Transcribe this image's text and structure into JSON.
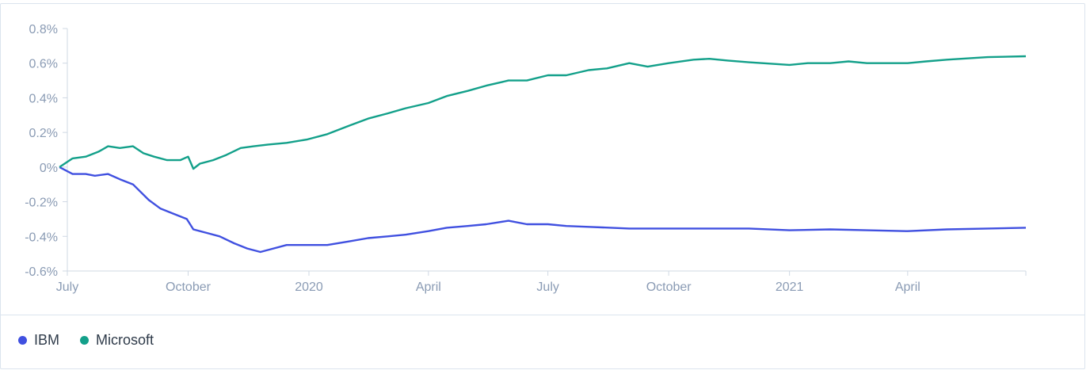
{
  "colors": {
    "ibm": "#4050e0",
    "microsoft": "#13a08a",
    "axis": "#cfd8e3",
    "tick_text": "#8a9bb4"
  },
  "chart_data": {
    "type": "line",
    "title": "",
    "xlabel": "",
    "ylabel": "",
    "ylim": [
      -0.6,
      0.8
    ],
    "xlim": [
      "2019-07-01",
      "2021-06-30"
    ],
    "y_ticks": [
      "0.8%",
      "0.6%",
      "0.4%",
      "0.2%",
      "0%",
      "-0.2%",
      "-0.4%",
      "-0.6%"
    ],
    "x_ticks": [
      {
        "date": "2019-07-01",
        "label": "July"
      },
      {
        "date": "2019-10-01",
        "label": "October"
      },
      {
        "date": "2020-01-01",
        "label": "2020"
      },
      {
        "date": "2020-04-01",
        "label": "April"
      },
      {
        "date": "2020-07-01",
        "label": "July"
      },
      {
        "date": "2020-10-01",
        "label": "October"
      },
      {
        "date": "2021-01-01",
        "label": "2021"
      },
      {
        "date": "2021-04-01",
        "label": "April"
      }
    ],
    "legend_position": "bottom-left",
    "grid": false,
    "series": [
      {
        "name": "IBM",
        "color": "#4050e0",
        "points": [
          [
            "2019-06-25",
            0.0
          ],
          [
            "2019-07-05",
            -0.04
          ],
          [
            "2019-07-15",
            -0.04
          ],
          [
            "2019-07-22",
            -0.05
          ],
          [
            "2019-08-01",
            -0.04
          ],
          [
            "2019-08-10",
            -0.07
          ],
          [
            "2019-08-20",
            -0.1
          ],
          [
            "2019-09-01",
            -0.19
          ],
          [
            "2019-09-10",
            -0.24
          ],
          [
            "2019-09-20",
            -0.27
          ],
          [
            "2019-09-30",
            -0.3
          ],
          [
            "2019-10-05",
            -0.36
          ],
          [
            "2019-10-15",
            -0.38
          ],
          [
            "2019-10-25",
            -0.4
          ],
          [
            "2019-11-05",
            -0.44
          ],
          [
            "2019-11-15",
            -0.47
          ],
          [
            "2019-11-25",
            -0.49
          ],
          [
            "2019-12-05",
            -0.47
          ],
          [
            "2019-12-15",
            -0.45
          ],
          [
            "2019-12-31",
            -0.45
          ],
          [
            "2020-01-15",
            -0.45
          ],
          [
            "2020-01-31",
            -0.43
          ],
          [
            "2020-02-15",
            -0.41
          ],
          [
            "2020-03-01",
            -0.4
          ],
          [
            "2020-03-15",
            -0.39
          ],
          [
            "2020-04-01",
            -0.37
          ],
          [
            "2020-04-15",
            -0.35
          ],
          [
            "2020-05-01",
            -0.34
          ],
          [
            "2020-05-15",
            -0.33
          ],
          [
            "2020-06-01",
            -0.31
          ],
          [
            "2020-06-15",
            -0.33
          ],
          [
            "2020-07-01",
            -0.33
          ],
          [
            "2020-07-15",
            -0.34
          ],
          [
            "2020-08-01",
            -0.345
          ],
          [
            "2020-09-01",
            -0.355
          ],
          [
            "2020-10-01",
            -0.355
          ],
          [
            "2020-11-01",
            -0.355
          ],
          [
            "2020-12-01",
            -0.355
          ],
          [
            "2021-01-01",
            -0.365
          ],
          [
            "2021-02-01",
            -0.36
          ],
          [
            "2021-03-01",
            -0.365
          ],
          [
            "2021-04-01",
            -0.37
          ],
          [
            "2021-05-01",
            -0.36
          ],
          [
            "2021-06-01",
            -0.355
          ],
          [
            "2021-06-30",
            -0.35
          ]
        ]
      },
      {
        "name": "Microsoft",
        "color": "#13a08a",
        "points": [
          [
            "2019-06-25",
            0.0
          ],
          [
            "2019-07-05",
            0.05
          ],
          [
            "2019-07-15",
            0.06
          ],
          [
            "2019-07-25",
            0.09
          ],
          [
            "2019-08-01",
            0.12
          ],
          [
            "2019-08-10",
            0.11
          ],
          [
            "2019-08-20",
            0.12
          ],
          [
            "2019-08-28",
            0.08
          ],
          [
            "2019-09-05",
            0.06
          ],
          [
            "2019-09-15",
            0.04
          ],
          [
            "2019-09-25",
            0.04
          ],
          [
            "2019-10-01",
            0.06
          ],
          [
            "2019-10-05",
            -0.01
          ],
          [
            "2019-10-10",
            0.02
          ],
          [
            "2019-10-20",
            0.04
          ],
          [
            "2019-10-30",
            0.07
          ],
          [
            "2019-11-10",
            0.11
          ],
          [
            "2019-11-20",
            0.12
          ],
          [
            "2019-12-01",
            0.13
          ],
          [
            "2019-12-15",
            0.14
          ],
          [
            "2019-12-31",
            0.16
          ],
          [
            "2020-01-15",
            0.19
          ],
          [
            "2020-02-01",
            0.24
          ],
          [
            "2020-02-15",
            0.28
          ],
          [
            "2020-03-01",
            0.31
          ],
          [
            "2020-03-15",
            0.34
          ],
          [
            "2020-04-01",
            0.37
          ],
          [
            "2020-04-15",
            0.41
          ],
          [
            "2020-05-01",
            0.44
          ],
          [
            "2020-05-15",
            0.47
          ],
          [
            "2020-06-01",
            0.5
          ],
          [
            "2020-06-15",
            0.5
          ],
          [
            "2020-07-01",
            0.53
          ],
          [
            "2020-07-15",
            0.53
          ],
          [
            "2020-08-01",
            0.56
          ],
          [
            "2020-08-15",
            0.57
          ],
          [
            "2020-09-01",
            0.6
          ],
          [
            "2020-09-15",
            0.58
          ],
          [
            "2020-10-01",
            0.6
          ],
          [
            "2020-10-20",
            0.62
          ],
          [
            "2020-11-01",
            0.625
          ],
          [
            "2020-11-15",
            0.615
          ],
          [
            "2020-12-01",
            0.605
          ],
          [
            "2021-01-01",
            0.59
          ],
          [
            "2021-01-15",
            0.6
          ],
          [
            "2021-02-01",
            0.6
          ],
          [
            "2021-02-15",
            0.61
          ],
          [
            "2021-03-01",
            0.6
          ],
          [
            "2021-04-01",
            0.6
          ],
          [
            "2021-04-15",
            0.61
          ],
          [
            "2021-05-01",
            0.62
          ],
          [
            "2021-06-01",
            0.635
          ],
          [
            "2021-06-30",
            0.64
          ]
        ]
      }
    ]
  },
  "legend": {
    "items": [
      {
        "label": "IBM",
        "color": "#4050e0"
      },
      {
        "label": "Microsoft",
        "color": "#13a08a"
      }
    ]
  }
}
